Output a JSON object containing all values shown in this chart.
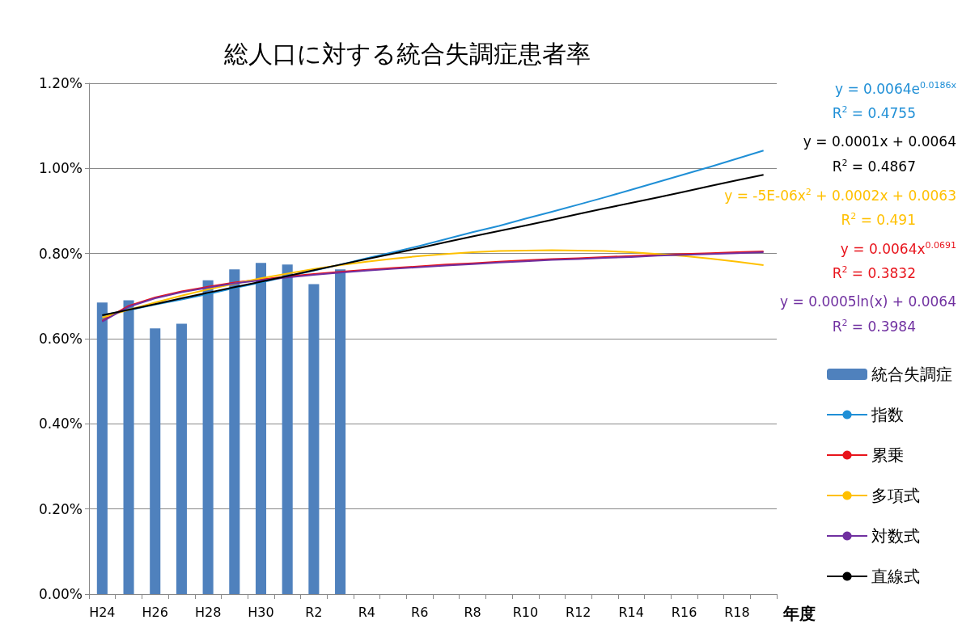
{
  "chart_data": {
    "type": "bar",
    "title": "総人口に対する統合失調症患者率",
    "xlabel": "年度",
    "categories": [
      "H24",
      null,
      "H26",
      null,
      "H28",
      null,
      "H30",
      null,
      "R2",
      null,
      "R4",
      null,
      "R6",
      null,
      "R8",
      null,
      "R10",
      null,
      "R12",
      null,
      "R14",
      null,
      "R16",
      null,
      "R18",
      null
    ],
    "series": [
      {
        "name": "統合失調症",
        "color": "#4f81bd",
        "values": [
          0.685,
          0.69,
          0.624,
          0.635,
          0.737,
          0.763,
          0.778,
          0.774,
          0.728,
          0.763,
          null,
          null,
          null,
          null,
          null,
          null,
          null,
          null,
          null,
          null,
          null,
          null,
          null,
          null,
          null,
          null
        ]
      },
      {
        "name": "指数",
        "type": "line",
        "color": "#1f8fd6",
        "values": [
          0.655,
          0.667,
          0.68,
          0.692,
          0.705,
          0.719,
          0.732,
          0.746,
          0.76,
          0.774,
          0.789,
          0.803,
          0.818,
          0.834,
          0.85,
          0.865,
          0.882,
          0.898,
          0.915,
          0.932,
          0.95,
          0.968,
          0.986,
          1.004,
          1.023,
          1.042
        ]
      },
      {
        "name": "累乗",
        "type": "line",
        "color": "#e8141c",
        "values": [
          0.642,
          0.677,
          0.697,
          0.711,
          0.722,
          0.732,
          0.739,
          0.746,
          0.752,
          0.757,
          0.762,
          0.766,
          0.77,
          0.774,
          0.777,
          0.781,
          0.784,
          0.787,
          0.789,
          0.792,
          0.794,
          0.797,
          0.799,
          0.801,
          0.803,
          0.805
        ]
      },
      {
        "name": "多項式",
        "type": "line",
        "color": "#ffc000",
        "values": [
          0.65,
          0.668,
          0.685,
          0.701,
          0.716,
          0.729,
          0.742,
          0.753,
          0.764,
          0.773,
          0.781,
          0.788,
          0.794,
          0.799,
          0.803,
          0.806,
          0.807,
          0.808,
          0.807,
          0.806,
          0.803,
          0.799,
          0.794,
          0.788,
          0.781,
          0.773
        ]
      },
      {
        "name": "対数式",
        "type": "line",
        "color": "#7030a0",
        "values": [
          0.64,
          0.675,
          0.695,
          0.709,
          0.72,
          0.73,
          0.737,
          0.744,
          0.75,
          0.755,
          0.76,
          0.764,
          0.768,
          0.772,
          0.775,
          0.779,
          0.782,
          0.785,
          0.787,
          0.79,
          0.792,
          0.795,
          0.797,
          0.799,
          0.801,
          0.803
        ]
      },
      {
        "name": "直線式",
        "type": "line",
        "color": "#000000",
        "values": [
          0.655,
          0.668,
          0.681,
          0.695,
          0.708,
          0.721,
          0.734,
          0.747,
          0.761,
          0.774,
          0.787,
          0.8,
          0.813,
          0.827,
          0.84,
          0.853,
          0.866,
          0.879,
          0.893,
          0.906,
          0.919,
          0.932,
          0.945,
          0.959,
          0.972,
          0.985
        ]
      }
    ],
    "ylim": [
      0,
      1.2
    ],
    "yticks": [
      {
        "value": 0,
        "label": "0.00%"
      },
      {
        "value": 0.2,
        "label": "0.20%"
      },
      {
        "value": 0.4,
        "label": "0.40%"
      },
      {
        "value": 0.6,
        "label": "0.60%"
      },
      {
        "value": 0.8,
        "label": "0.80%"
      },
      {
        "value": 1.0,
        "label": "1.00%"
      },
      {
        "value": 1.2,
        "label": "1.20%"
      }
    ],
    "grid": "y",
    "legend": "right",
    "annotations": [
      "y = 0.0064e$^{0.0186x}$",
      "R$^{2}$ = 0.4755",
      "y = 0.0001x + 0.0064",
      "R$^{2}$ = 0.4867",
      "y = -5E-06x$^{2}$ + 0.0002x + 0.0063",
      "R$^{2}$ = 0.491",
      "y = 0.0064x$^{0.0691}$",
      "R$^{2}$ = 0.3832",
      "y = 0.0005ln(x) + 0.0064",
      "R$^{2}$ = 0.3984"
    ]
  }
}
